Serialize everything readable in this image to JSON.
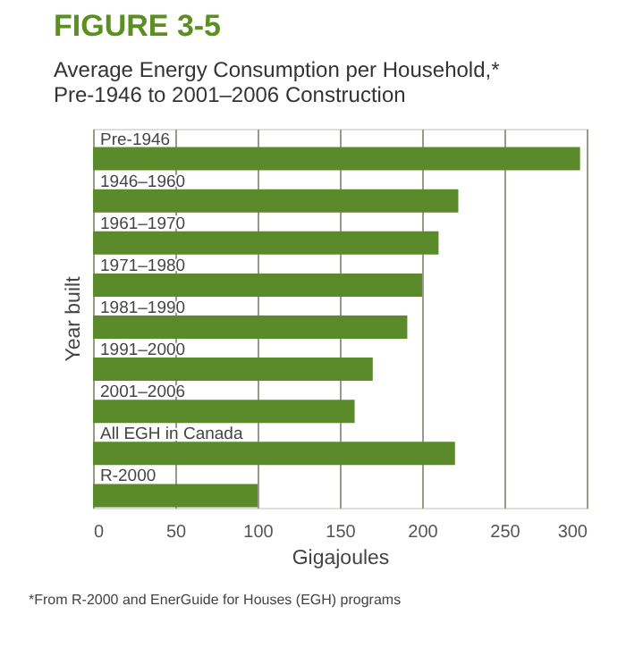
{
  "chart_data": {
    "type": "bar",
    "orientation": "horizontal",
    "title": "FIGURE 3-5",
    "subtitle": "Average Energy Consumption per Household,*\nPre-1946 to 2001–2006 Construction",
    "xlabel": "Gigajoules",
    "ylabel": "Year built",
    "categories": [
      "Pre-1946",
      "1946–1960",
      "1961–1970",
      "1971–1980",
      "1981–1990",
      "1991–2000",
      "2001–2006",
      "All EGH in Canada",
      "R-2000"
    ],
    "values": [
      296,
      222,
      210,
      200,
      191,
      170,
      159,
      220,
      100
    ],
    "color": "#5a8a2a",
    "xlim": [
      0,
      300
    ],
    "xticks": [
      0,
      50,
      100,
      150,
      200,
      250,
      300
    ],
    "grid": "x",
    "annotations": [
      "*From R-2000 and EnerGuide for Houses (EGH) programs"
    ]
  }
}
